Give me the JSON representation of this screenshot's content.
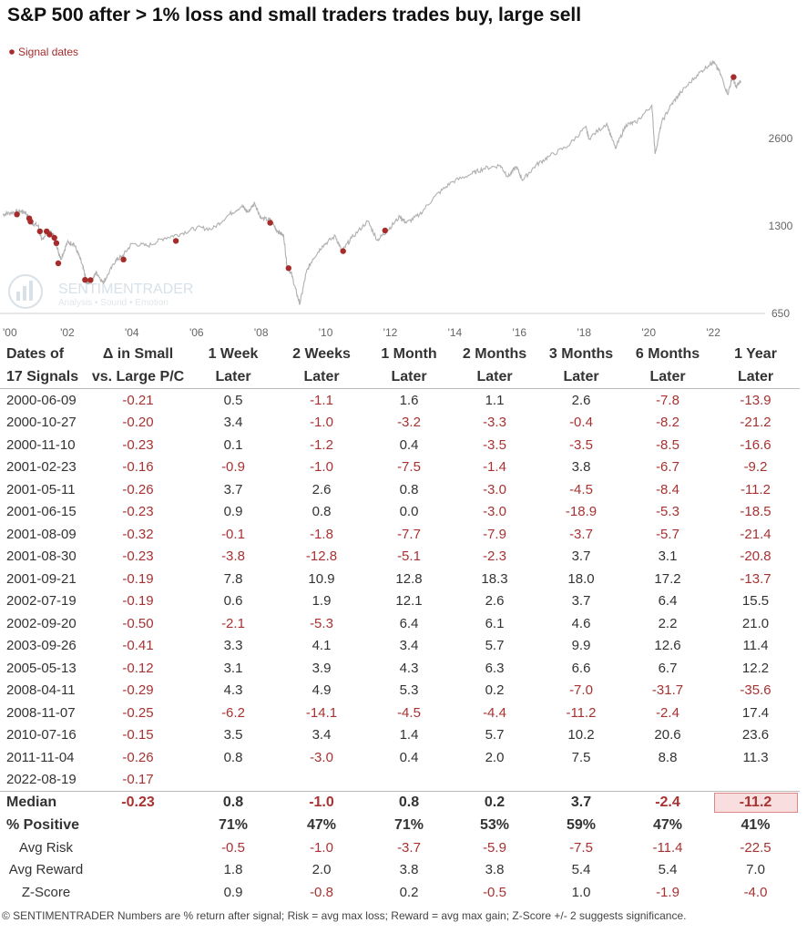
{
  "title": "S&P 500 after > 1% loss and small traders trades buy, large sell",
  "footer": "© SENTIMENTRADER  Numbers are % return after signal; Risk = avg max loss; Reward = avg max gain; Z-Score +/- 2 suggests significance.",
  "watermark": {
    "name": "SENTIMENTRADER",
    "tagline": "Analysis • Sound • Emotion"
  },
  "colors": {
    "price_line": "#b0b0b0",
    "signal_dot": "#a62b2b",
    "negative": "#a83232",
    "highlight_bg": "#f8dede"
  },
  "chart_data": {
    "type": "line",
    "scale": "log",
    "legend": {
      "label": "Signal dates",
      "placement": "top-left"
    },
    "x_ticks": [
      "'00",
      "'02",
      "'04",
      "'06",
      "'08",
      "'10",
      "'12",
      "'14",
      "'16",
      "'18",
      "'20",
      "'22"
    ],
    "y_ticks": [
      650,
      1300,
      2600
    ],
    "ylim": [
      640,
      5200
    ],
    "xlim": [
      2000.0,
      2022.9
    ],
    "series": [
      {
        "points": [
          [
            2000.0,
            1420
          ],
          [
            2000.2,
            1440
          ],
          [
            2000.5,
            1460
          ],
          [
            2000.7,
            1450
          ],
          [
            2000.9,
            1330
          ],
          [
            2001.1,
            1300
          ],
          [
            2001.2,
            1160
          ],
          [
            2001.4,
            1250
          ],
          [
            2001.6,
            1200
          ],
          [
            2001.7,
            1080
          ],
          [
            2001.8,
            1000
          ],
          [
            2002.0,
            1140
          ],
          [
            2002.2,
            1130
          ],
          [
            2002.4,
            1000
          ],
          [
            2002.55,
            880
          ],
          [
            2002.6,
            820
          ],
          [
            2002.8,
            860
          ],
          [
            2002.9,
            900
          ],
          [
            2003.1,
            830
          ],
          [
            2003.2,
            860
          ],
          [
            2003.5,
            990
          ],
          [
            2003.7,
            1020
          ],
          [
            2004.0,
            1130
          ],
          [
            2004.5,
            1110
          ],
          [
            2005.0,
            1180
          ],
          [
            2005.5,
            1220
          ],
          [
            2006.0,
            1280
          ],
          [
            2006.5,
            1270
          ],
          [
            2007.0,
            1420
          ],
          [
            2007.4,
            1520
          ],
          [
            2007.6,
            1450
          ],
          [
            2007.8,
            1560
          ],
          [
            2008.0,
            1380
          ],
          [
            2008.3,
            1360
          ],
          [
            2008.5,
            1250
          ],
          [
            2008.7,
            1200
          ],
          [
            2008.8,
            950
          ],
          [
            2008.95,
            880
          ],
          [
            2009.1,
            760
          ],
          [
            2009.2,
            700
          ],
          [
            2009.4,
            900
          ],
          [
            2009.6,
            1000
          ],
          [
            2009.9,
            1110
          ],
          [
            2010.3,
            1200
          ],
          [
            2010.5,
            1060
          ],
          [
            2010.8,
            1180
          ],
          [
            2011.3,
            1350
          ],
          [
            2011.6,
            1160
          ],
          [
            2011.9,
            1250
          ],
          [
            2012.3,
            1400
          ],
          [
            2012.5,
            1330
          ],
          [
            2012.9,
            1420
          ],
          [
            2013.4,
            1650
          ],
          [
            2013.9,
            1840
          ],
          [
            2014.5,
            1960
          ],
          [
            2014.9,
            2050
          ],
          [
            2015.4,
            2100
          ],
          [
            2015.65,
            1920
          ],
          [
            2015.9,
            2080
          ],
          [
            2016.1,
            1870
          ],
          [
            2016.5,
            2100
          ],
          [
            2016.9,
            2250
          ],
          [
            2017.5,
            2450
          ],
          [
            2018.05,
            2850
          ],
          [
            2018.15,
            2600
          ],
          [
            2018.7,
            2930
          ],
          [
            2018.97,
            2400
          ],
          [
            2019.3,
            2900
          ],
          [
            2019.6,
            2950
          ],
          [
            2020.1,
            3380
          ],
          [
            2020.2,
            2300
          ],
          [
            2020.4,
            2950
          ],
          [
            2020.7,
            3400
          ],
          [
            2021.0,
            3750
          ],
          [
            2021.5,
            4300
          ],
          [
            2021.9,
            4700
          ],
          [
            2022.0,
            4780
          ],
          [
            2022.2,
            4400
          ],
          [
            2022.45,
            3700
          ],
          [
            2022.6,
            4250
          ],
          [
            2022.7,
            3900
          ],
          [
            2022.85,
            4100
          ]
        ]
      }
    ],
    "signals": [
      {
        "date": 2000.44,
        "price": 1424
      },
      {
        "date": 2000.82,
        "price": 1379
      },
      {
        "date": 2000.86,
        "price": 1345
      },
      {
        "date": 2001.15,
        "price": 1245
      },
      {
        "date": 2001.36,
        "price": 1245
      },
      {
        "date": 2001.45,
        "price": 1214
      },
      {
        "date": 2001.6,
        "price": 1183
      },
      {
        "date": 2001.66,
        "price": 1134
      },
      {
        "date": 2001.72,
        "price": 966
      },
      {
        "date": 2002.55,
        "price": 847
      },
      {
        "date": 2002.72,
        "price": 846
      },
      {
        "date": 2003.74,
        "price": 996
      },
      {
        "date": 2005.36,
        "price": 1154
      },
      {
        "date": 2008.28,
        "price": 1332
      },
      {
        "date": 2008.85,
        "price": 930
      },
      {
        "date": 2010.54,
        "price": 1064
      },
      {
        "date": 2011.84,
        "price": 1253
      },
      {
        "date": 2022.63,
        "price": 4228
      }
    ]
  },
  "table": {
    "headers": [
      [
        "Dates of",
        "17 Signals"
      ],
      [
        "Δ in Small",
        "vs. Large P/C"
      ],
      [
        "1 Week",
        "Later"
      ],
      [
        "2 Weeks",
        "Later"
      ],
      [
        "1 Month",
        "Later"
      ],
      [
        "2 Months",
        "Later"
      ],
      [
        "3 Months",
        "Later"
      ],
      [
        "6 Months",
        "Later"
      ],
      [
        "1 Year",
        "Later"
      ]
    ],
    "rows": [
      [
        "2000-06-09",
        "-0.21",
        "0.5",
        "-1.1",
        "1.6",
        "1.1",
        "2.6",
        "-7.8",
        "-13.9"
      ],
      [
        "2000-10-27",
        "-0.20",
        "3.4",
        "-1.0",
        "-3.2",
        "-3.3",
        "-0.4",
        "-8.2",
        "-21.2"
      ],
      [
        "2000-11-10",
        "-0.23",
        "0.1",
        "-1.2",
        "0.4",
        "-3.5",
        "-3.5",
        "-8.5",
        "-16.6"
      ],
      [
        "2001-02-23",
        "-0.16",
        "-0.9",
        "-1.0",
        "-7.5",
        "-1.4",
        "3.8",
        "-6.7",
        "-9.2"
      ],
      [
        "2001-05-11",
        "-0.26",
        "3.7",
        "2.6",
        "0.8",
        "-3.0",
        "-4.5",
        "-8.4",
        "-11.2"
      ],
      [
        "2001-06-15",
        "-0.23",
        "0.9",
        "0.8",
        "0.0",
        "-3.0",
        "-18.9",
        "-5.3",
        "-18.5"
      ],
      [
        "2001-08-09",
        "-0.32",
        "-0.1",
        "-1.8",
        "-7.7",
        "-7.9",
        "-3.7",
        "-5.7",
        "-21.4"
      ],
      [
        "2001-08-30",
        "-0.23",
        "-3.8",
        "-12.8",
        "-5.1",
        "-2.3",
        "3.7",
        "3.1",
        "-20.8"
      ],
      [
        "2001-09-21",
        "-0.19",
        "7.8",
        "10.9",
        "12.8",
        "18.3",
        "18.0",
        "17.2",
        "-13.7"
      ],
      [
        "2002-07-19",
        "-0.19",
        "0.6",
        "1.9",
        "12.1",
        "2.6",
        "3.7",
        "6.4",
        "15.5"
      ],
      [
        "2002-09-20",
        "-0.50",
        "-2.1",
        "-5.3",
        "6.4",
        "6.1",
        "4.6",
        "2.2",
        "21.0"
      ],
      [
        "2003-09-26",
        "-0.41",
        "3.3",
        "4.1",
        "3.4",
        "5.7",
        "9.9",
        "12.6",
        "11.4"
      ],
      [
        "2005-05-13",
        "-0.12",
        "3.1",
        "3.9",
        "4.3",
        "6.3",
        "6.6",
        "6.7",
        "12.2"
      ],
      [
        "2008-04-11",
        "-0.29",
        "4.3",
        "4.9",
        "5.3",
        "0.2",
        "-7.0",
        "-31.7",
        "-35.6"
      ],
      [
        "2008-11-07",
        "-0.25",
        "-6.2",
        "-14.1",
        "-4.5",
        "-4.4",
        "-11.2",
        "-2.4",
        "17.4"
      ],
      [
        "2010-07-16",
        "-0.15",
        "3.5",
        "3.4",
        "1.4",
        "5.7",
        "10.2",
        "20.6",
        "23.6"
      ],
      [
        "2011-11-04",
        "-0.26",
        "0.8",
        "-3.0",
        "0.4",
        "2.0",
        "7.5",
        "8.8",
        "11.3"
      ],
      [
        "2022-08-19",
        "-0.17",
        "",
        "",
        "",
        "",
        "",
        "",
        ""
      ]
    ],
    "median": {
      "label": "Median",
      "values": [
        "-0.23",
        "0.8",
        "-1.0",
        "0.8",
        "0.2",
        "3.7",
        "-2.4",
        "-11.2"
      ]
    },
    "pct_positive": {
      "label": "% Positive",
      "values": [
        "",
        "71%",
        "47%",
        "71%",
        "53%",
        "59%",
        "47%",
        "41%"
      ]
    },
    "avg_risk": {
      "label": "Avg Risk",
      "values": [
        "",
        "-0.5",
        "-1.0",
        "-3.7",
        "-5.9",
        "-7.5",
        "-11.4",
        "-22.5"
      ]
    },
    "avg_reward": {
      "label": "Avg Reward",
      "values": [
        "",
        "1.8",
        "2.0",
        "3.8",
        "3.8",
        "5.4",
        "5.4",
        "7.0"
      ]
    },
    "z_score": {
      "label": "Z-Score",
      "values": [
        "",
        "0.9",
        "-0.8",
        "0.2",
        "-0.5",
        "1.0",
        "-1.9",
        "-4.0"
      ]
    }
  }
}
